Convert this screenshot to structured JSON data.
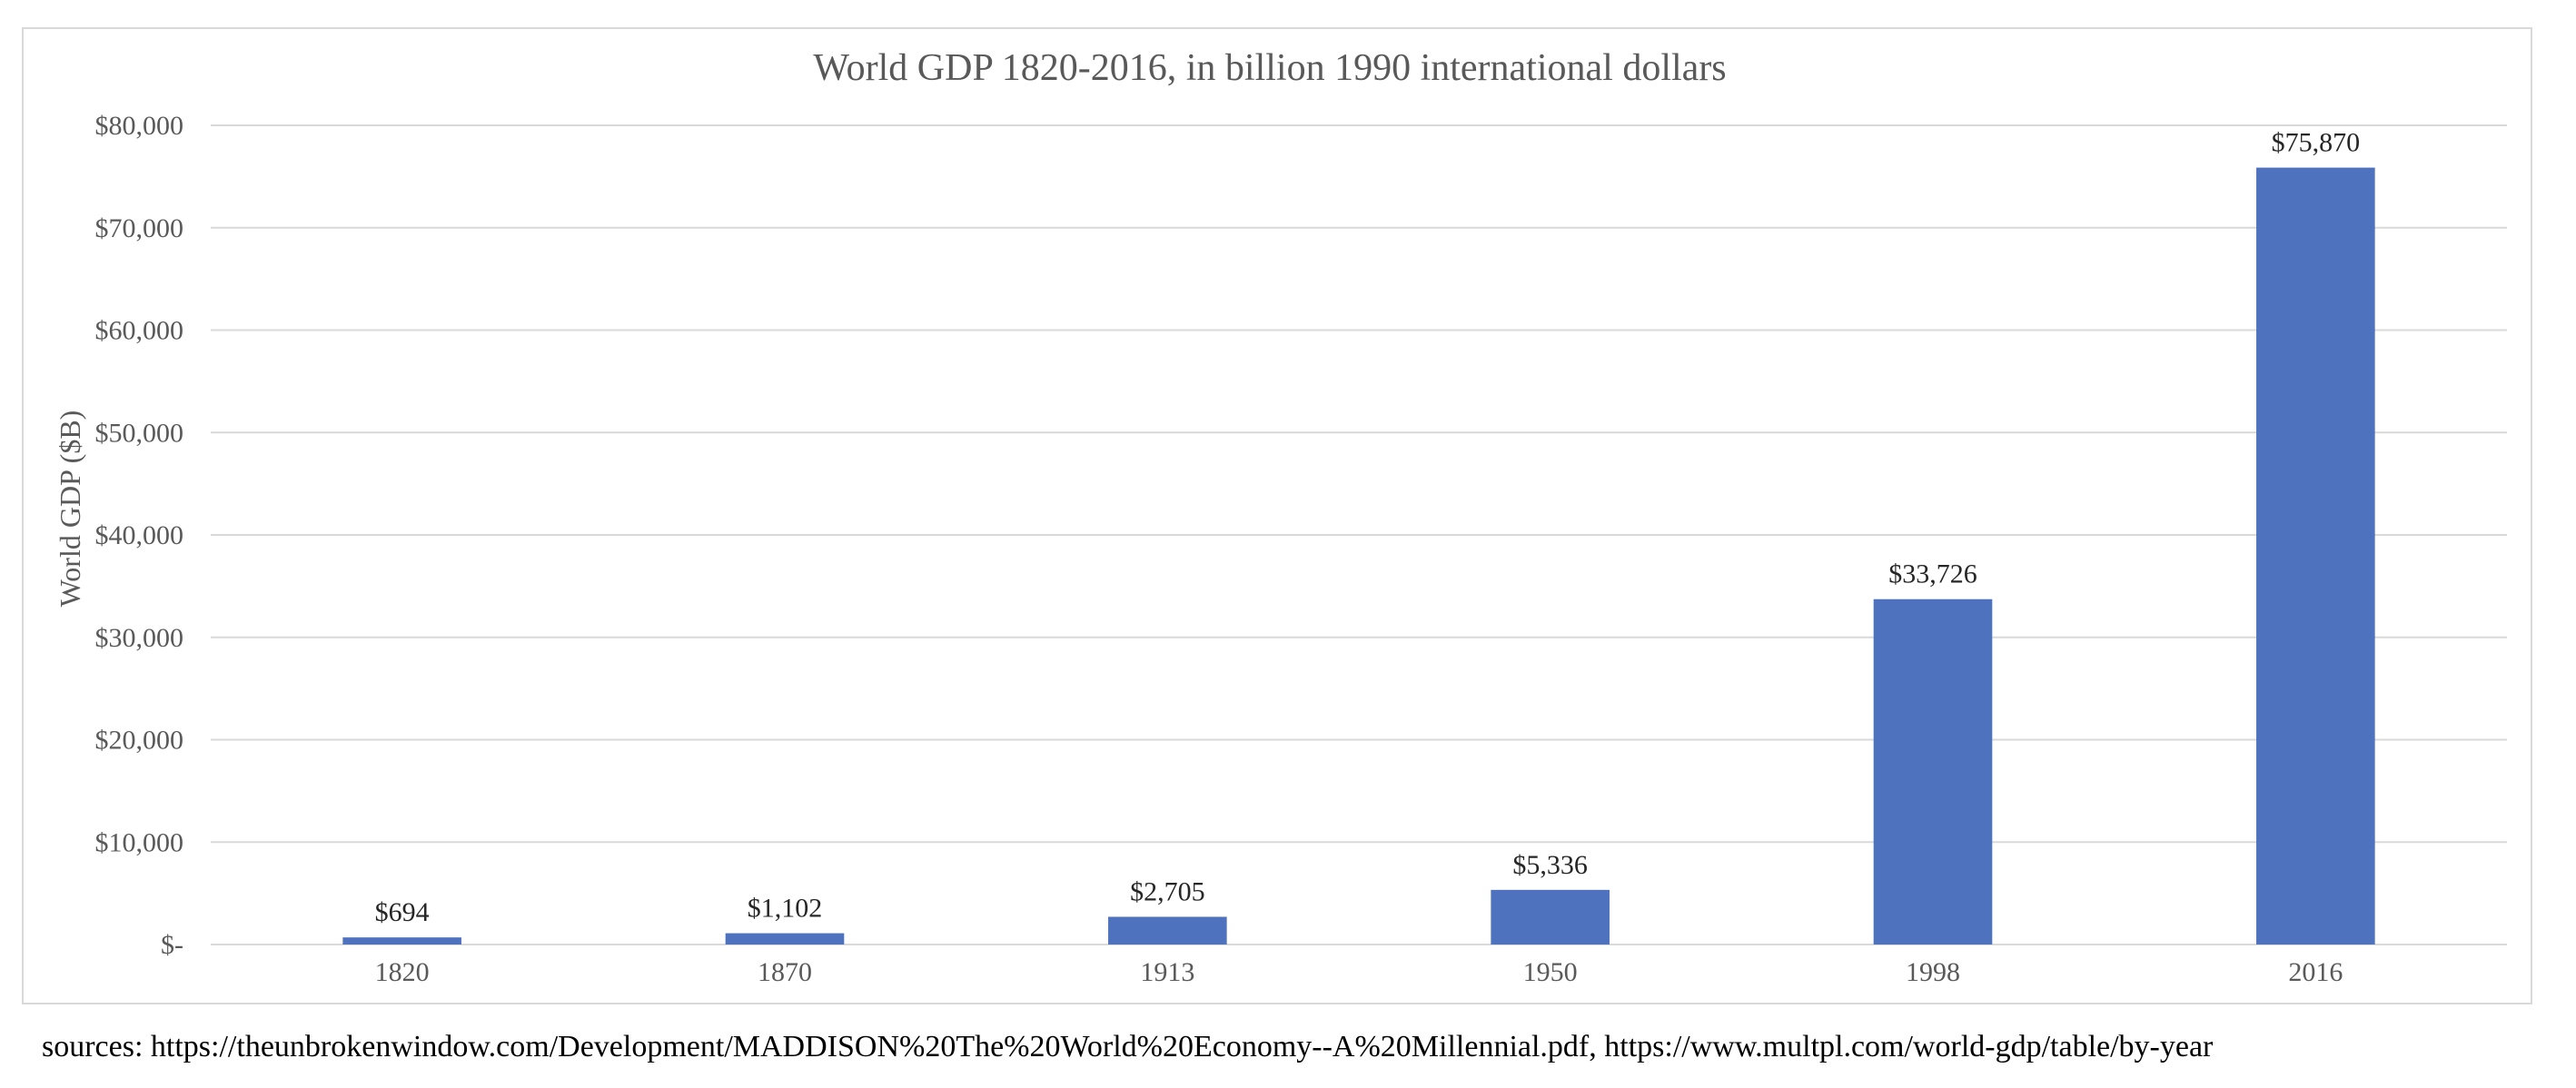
{
  "chart_data": {
    "type": "bar",
    "title": "World GDP 1820-2016, in billion 1990 international dollars",
    "xlabel": "",
    "ylabel": "World GDP ($B)",
    "categories": [
      "1820",
      "1870",
      "1913",
      "1950",
      "1998",
      "2016"
    ],
    "values": [
      694,
      1102,
      2705,
      5336,
      33726,
      75870
    ],
    "data_labels": [
      "$694",
      "$1,102",
      "$2,705",
      "$5,336",
      "$33,726",
      "$75,870"
    ],
    "ylim": [
      0,
      80000
    ],
    "y_ticks": [
      0,
      10000,
      20000,
      30000,
      40000,
      50000,
      60000,
      70000,
      80000
    ],
    "y_tick_labels": [
      "$-",
      "$10,000",
      "$20,000",
      "$30,000",
      "$40,000",
      "$50,000",
      "$60,000",
      "$70,000",
      "$80,000"
    ],
    "grid": true,
    "legend": "none",
    "bar_color": "#4f72be",
    "grid_color": "#d9d9d9"
  },
  "source_note": "sources: https://theunbrokenwindow.com/Development/MADDISON%20The%20World%20Economy--A%20Millennial.pdf, https://www.multpl.com/world-gdp/table/by-year"
}
